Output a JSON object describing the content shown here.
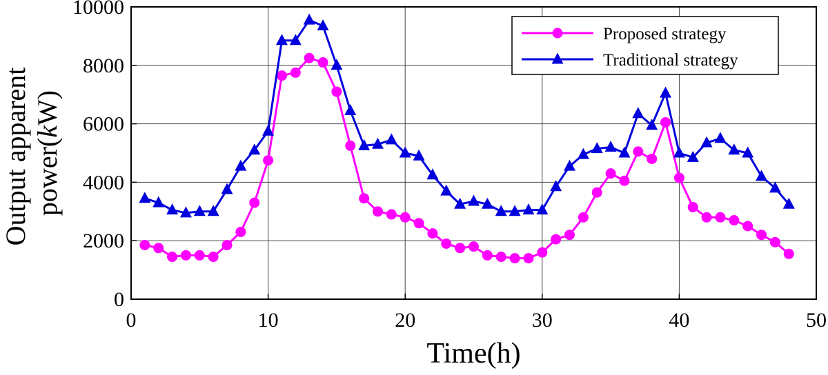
{
  "chart_data": {
    "type": "line",
    "title": "",
    "xlabel": "Time(h)",
    "ylabel_line1": "Output apparent",
    "ylabel_line2_prefix": "power(",
    "ylabel_line2_italic": "k",
    "ylabel_line2_suffix": "W)",
    "xlim": [
      0,
      50
    ],
    "ylim": [
      0,
      10000
    ],
    "xticks": [
      0,
      10,
      20,
      30,
      40,
      50
    ],
    "yticks": [
      0,
      2000,
      4000,
      6000,
      8000,
      10000
    ],
    "grid": true,
    "legend_position": "top-right",
    "x": [
      1,
      2,
      3,
      4,
      5,
      6,
      7,
      8,
      9,
      10,
      11,
      12,
      13,
      14,
      15,
      16,
      17,
      18,
      19,
      20,
      21,
      22,
      23,
      24,
      25,
      26,
      27,
      28,
      29,
      30,
      31,
      32,
      33,
      34,
      35,
      36,
      37,
      38,
      39,
      40,
      41,
      42,
      43,
      44,
      45,
      46,
      47,
      48
    ],
    "series": [
      {
        "name": "Proposed strategy",
        "color": "#ff00ff",
        "marker": "circle",
        "values": [
          1850,
          1750,
          1450,
          1500,
          1500,
          1450,
          1850,
          2300,
          3300,
          4750,
          7650,
          7750,
          8250,
          8100,
          7100,
          5250,
          3450,
          3000,
          2900,
          2800,
          2600,
          2250,
          1900,
          1750,
          1800,
          1500,
          1450,
          1400,
          1400,
          1600,
          2050,
          2200,
          2800,
          3650,
          4300,
          4050,
          5050,
          4800,
          6050,
          4150,
          3150,
          2800,
          2800,
          2700,
          2500,
          2200,
          1950,
          1550
        ]
      },
      {
        "name": "Traditional strategy",
        "color": "#0000dd",
        "marker": "triangle",
        "values": [
          3450,
          3300,
          3050,
          2950,
          3000,
          3000,
          3750,
          4550,
          5100,
          5750,
          8850,
          8850,
          9550,
          9350,
          8000,
          6450,
          5250,
          5300,
          5450,
          5000,
          4900,
          4250,
          3700,
          3250,
          3350,
          3250,
          3000,
          3000,
          3050,
          3050,
          3850,
          4550,
          4950,
          5150,
          5200,
          5000,
          6350,
          5950,
          7050,
          5000,
          4850,
          5350,
          5500,
          5100,
          5000,
          4200,
          3800,
          3250
        ]
      }
    ]
  }
}
